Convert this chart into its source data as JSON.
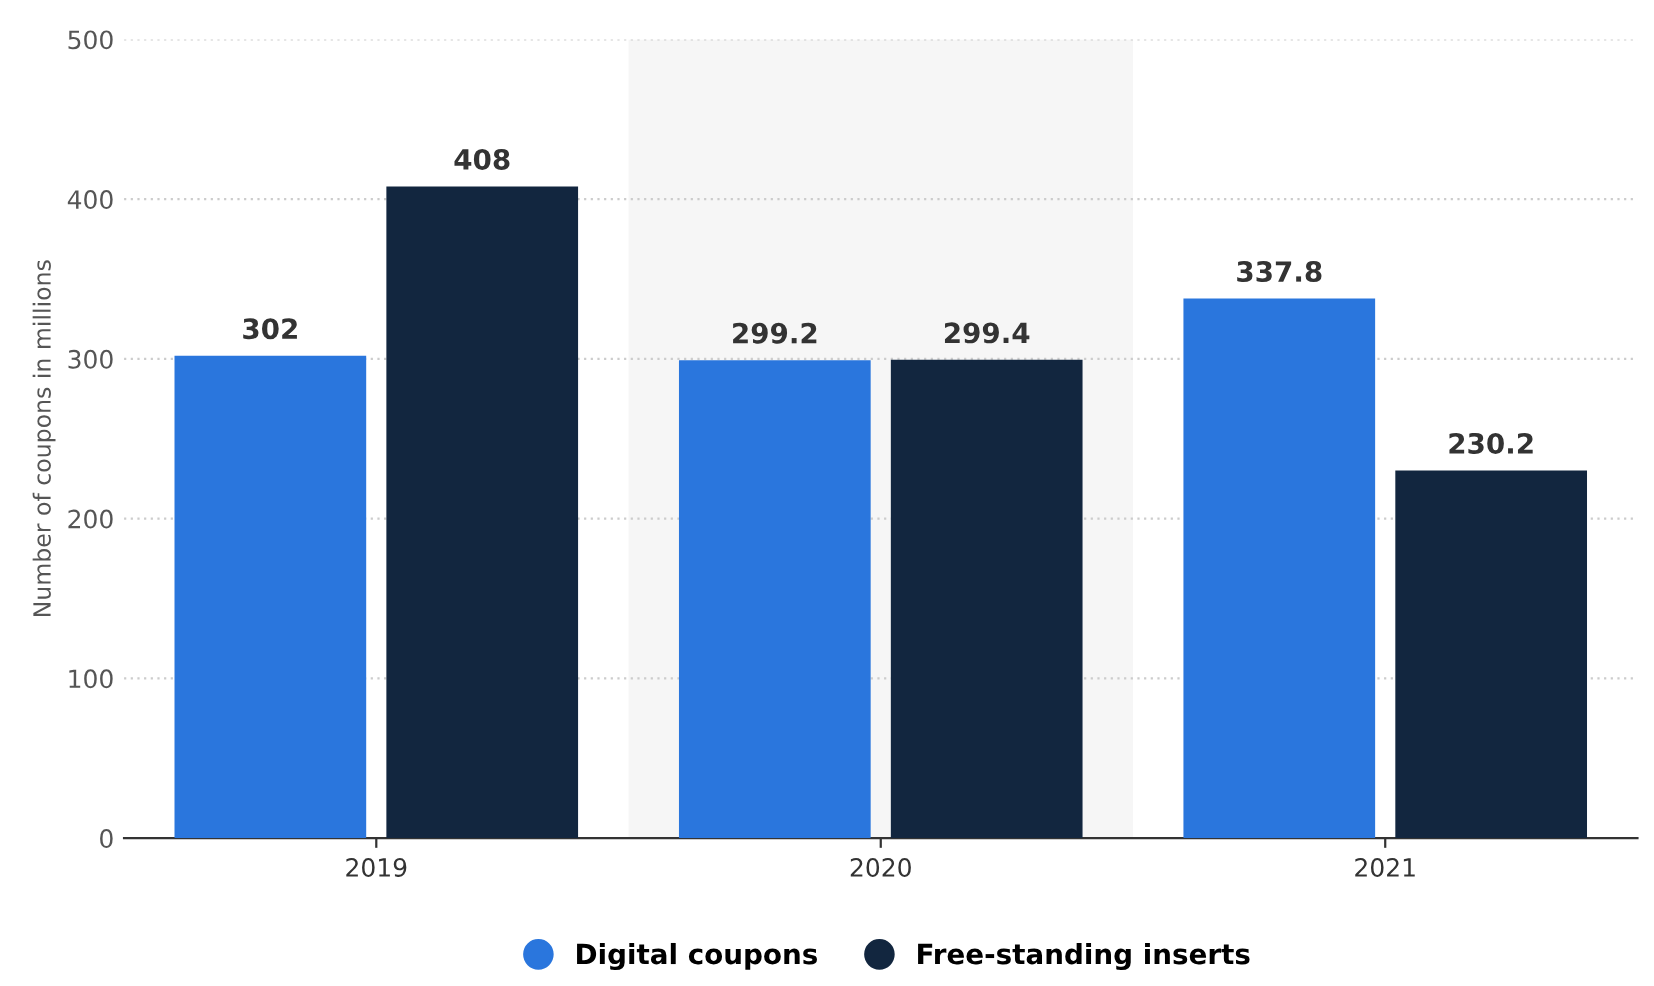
{
  "chart_data": {
    "type": "bar",
    "ylabel": "Number of coupons in millions",
    "categories": [
      "2019",
      "2020",
      "2021"
    ],
    "series": [
      {
        "name": "Digital coupons",
        "color": "#2a76dd",
        "values": [
          302,
          299.2,
          337.8
        ]
      },
      {
        "name": "Free-standing inserts",
        "color": "#12263f",
        "values": [
          408,
          299.4,
          230.2
        ]
      }
    ],
    "ylim": [
      0,
      500
    ],
    "yticks": [
      0,
      100,
      200,
      300,
      400,
      500
    ],
    "grid": "y",
    "legend": "bottom",
    "data_labels": true,
    "bands": [
      {
        "axis": "x",
        "from": "2020",
        "to": "2020",
        "color": "#f6f6f6"
      }
    ]
  }
}
